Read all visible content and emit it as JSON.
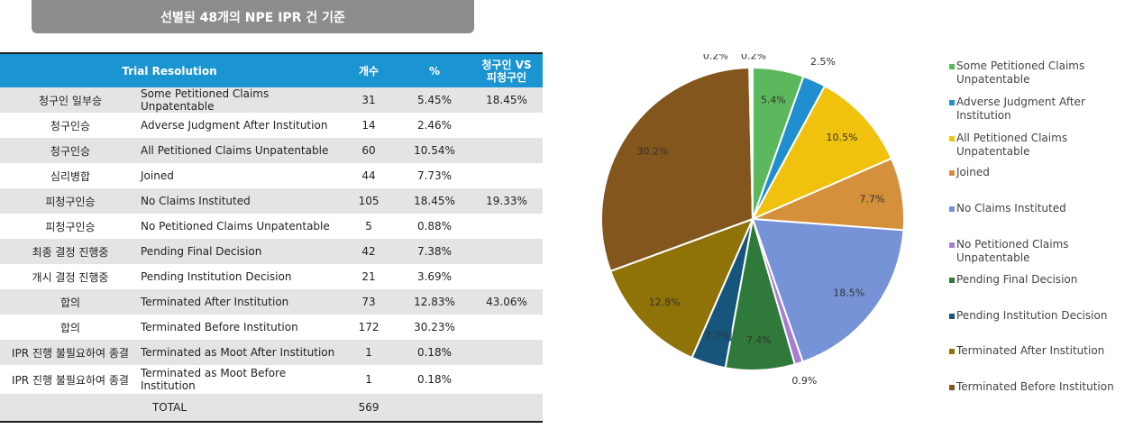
{
  "header": {
    "title": "선별된 48개의 NPE IPR 건 기준"
  },
  "table": {
    "columns": [
      "Trial Resolution",
      "개수",
      "%",
      "청구인 VS 피청구인"
    ],
    "rows": [
      {
        "kr": "청구인 일부승",
        "en": "Some Petitioned Claims Unpatentable",
        "count": "31",
        "pct": "5.45%",
        "vs": "18.45%"
      },
      {
        "kr": "청구인승",
        "en": "Adverse Judgment After Institution",
        "count": "14",
        "pct": "2.46%",
        "vs": ""
      },
      {
        "kr": "청구인승",
        "en": "All Petitioned Claims Unpatentable",
        "count": "60",
        "pct": "10.54%",
        "vs": ""
      },
      {
        "kr": "심리병합",
        "en": "Joined",
        "count": "44",
        "pct": "7.73%",
        "vs": ""
      },
      {
        "kr": "피청구인승",
        "en": "No Claims Instituted",
        "count": "105",
        "pct": "18.45%",
        "vs": "19.33%"
      },
      {
        "kr": "피청구인승",
        "en": "No Petitioned Claims Unpatentable",
        "count": "5",
        "pct": "0.88%",
        "vs": ""
      },
      {
        "kr": "최종 결정 진행중",
        "en": "Pending Final Decision",
        "count": "42",
        "pct": "7.38%",
        "vs": ""
      },
      {
        "kr": "개시 결정 진행중",
        "en": "Pending Institution Decision",
        "count": "21",
        "pct": "3.69%",
        "vs": ""
      },
      {
        "kr": "합의",
        "en": "Terminated After Institution",
        "count": "73",
        "pct": "12.83%",
        "vs": "43.06%"
      },
      {
        "kr": "합의",
        "en": "Terminated Before Institution",
        "count": "172",
        "pct": "30.23%",
        "vs": ""
      },
      {
        "kr": "IPR 진행 불필요하여 종결",
        "en": "Terminated as Moot After Institution",
        "count": "1",
        "pct": "0.18%",
        "vs": ""
      },
      {
        "kr": "IPR 진행 불필요하여 종결",
        "en": "Terminated as Moot Before Institution",
        "count": "1",
        "pct": "0.18%",
        "vs": ""
      }
    ],
    "total": {
      "label": "TOTAL",
      "count": "569"
    }
  },
  "chart_data": {
    "type": "pie",
    "title": "",
    "slices": [
      {
        "name": "Some Petitioned Claims Unpatentable",
        "value": 5.45,
        "label": "5.4%",
        "color": "#5cb85c"
      },
      {
        "name": "Adverse Judgment After Institution",
        "value": 2.46,
        "label": "2.5%",
        "color": "#1f8fd0"
      },
      {
        "name": "All Petitioned Claims Unpatentable",
        "value": 10.54,
        "label": "10.5%",
        "color": "#f0c20d"
      },
      {
        "name": "Joined",
        "value": 7.73,
        "label": "7.7%",
        "color": "#d4903a"
      },
      {
        "name": "No Claims Instituted",
        "value": 18.45,
        "label": "18.5%",
        "color": "#7593d6"
      },
      {
        "name": "No Petitioned Claims Unpatentable",
        "value": 0.88,
        "label": "0.9%",
        "color": "#a77dd4"
      },
      {
        "name": "Pending Final Decision",
        "value": 7.38,
        "label": "7.4%",
        "color": "#2f7a3a"
      },
      {
        "name": "Pending Institution Decision",
        "value": 3.69,
        "label": "3.7%",
        "color": "#17557c"
      },
      {
        "name": "Terminated After Institution",
        "value": 12.83,
        "label": "12.8%",
        "color": "#8f7208"
      },
      {
        "name": "Terminated Before Institution",
        "value": 30.23,
        "label": "30.2%",
        "color": "#83561d"
      },
      {
        "name": "Terminated as Moot After Institution",
        "value": 0.18,
        "label": "0.2%",
        "color": "#4a76b4"
      },
      {
        "name": "Terminated as Moot Before Institution",
        "value": 0.18,
        "label": "0.2%",
        "color": "#3c8f8f"
      }
    ],
    "legend": {
      "position": "right",
      "entries": [
        {
          "label": "Some Petitioned Claims Unpatentable",
          "color": "#5cb85c"
        },
        {
          "label": "Adverse Judgment After Institution",
          "color": "#1f8fd0"
        },
        {
          "label": "All Petitioned Claims Unpatentable",
          "color": "#f0c20d"
        },
        {
          "label": "Joined",
          "color": "#d4903a"
        },
        {
          "label": "No Claims Instituted",
          "color": "#7593d6"
        },
        {
          "label": "No Petitioned Claims Unpatentable",
          "color": "#a77dd4"
        },
        {
          "label": "Pending Final Decision",
          "color": "#2f7a3a"
        },
        {
          "label": "Pending Institution Decision",
          "color": "#17557c"
        },
        {
          "label": "Terminated After Institution",
          "color": "#8f7208"
        },
        {
          "label": "Terminated Before Institution",
          "color": "#83561d"
        }
      ]
    }
  }
}
